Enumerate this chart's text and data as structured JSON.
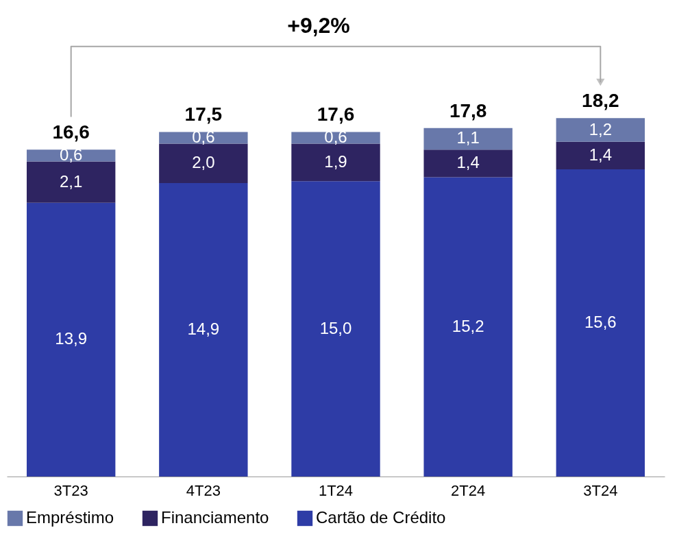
{
  "chart_data": {
    "type": "bar",
    "stacked": true,
    "categories": [
      "3T23",
      "4T23",
      "1T24",
      "2T24",
      "3T24"
    ],
    "series": [
      {
        "name": "Cartão de Crédito",
        "color": "#2e3ca6",
        "values": [
          13.9,
          14.9,
          15.0,
          15.2,
          15.6
        ],
        "value_labels": [
          "13,9",
          "14,9",
          "15,0",
          "15,2",
          "15,6"
        ]
      },
      {
        "name": "Financiamento",
        "color": "#2e2461",
        "values": [
          2.1,
          2.0,
          1.9,
          1.4,
          1.4
        ],
        "value_labels": [
          "2,1",
          "2,0",
          "1,9",
          "1,4",
          "1,4"
        ]
      },
      {
        "name": "Empréstimo",
        "color": "#6878aa",
        "values": [
          0.6,
          0.6,
          0.6,
          1.1,
          1.2
        ],
        "value_labels": [
          "0,6",
          "0,6",
          "0,6",
          "1,1",
          "1,2"
        ]
      }
    ],
    "totals": [
      "16,6",
      "17,5",
      "17,6",
      "17,8",
      "18,2"
    ],
    "annotations": [
      "+9,2%"
    ],
    "legend": "bottom",
    "grid": false
  }
}
